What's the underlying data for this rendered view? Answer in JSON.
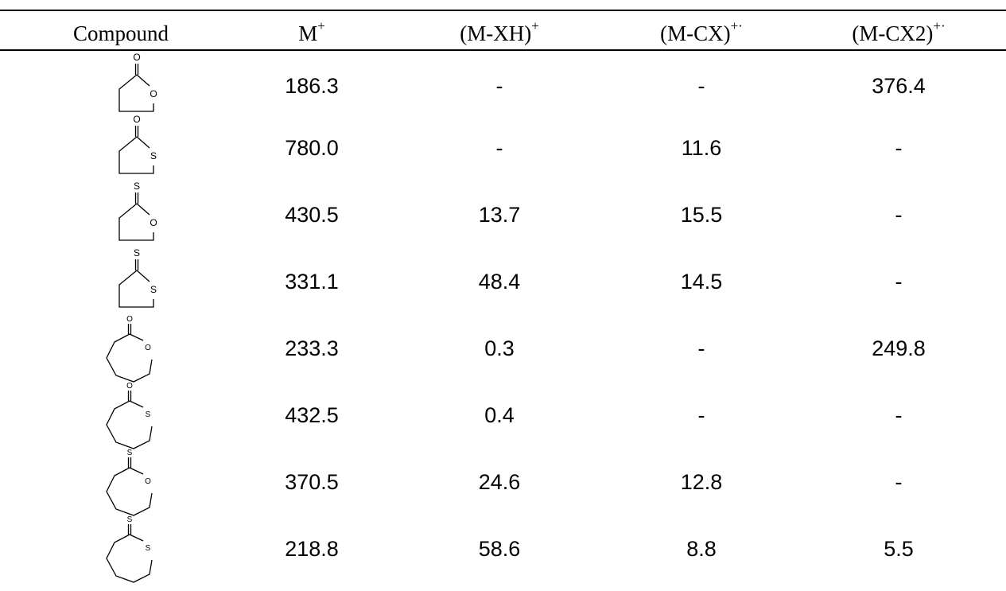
{
  "headers": {
    "compound": "Compound",
    "m_base": "M",
    "m_sup": "+",
    "mxh_base": "(M-XH)",
    "mxh_sup": "+",
    "mcx_base": "(M-CX)",
    "mcx_sup": "+·",
    "mcx2_base": "(M-CX2)",
    "mcx2_sup": "+·"
  },
  "rows": [
    {
      "ring": 5,
      "exo": "O",
      "ring_atom": "O",
      "m": "186.3",
      "mxh": "-",
      "mcx": "-",
      "mcx2": "376.4"
    },
    {
      "ring": 5,
      "exo": "O",
      "ring_atom": "S",
      "m": "780.0",
      "mxh": "-",
      "mcx": "11.6",
      "mcx2": "-"
    },
    {
      "ring": 5,
      "exo": "S",
      "ring_atom": "O",
      "m": "430.5",
      "mxh": "13.7",
      "mcx": "15.5",
      "mcx2": "-"
    },
    {
      "ring": 5,
      "exo": "S",
      "ring_atom": "S",
      "m": "331.1",
      "mxh": "48.4",
      "mcx": "14.5",
      "mcx2": "-"
    },
    {
      "ring": 7,
      "exo": "O",
      "ring_atom": "O",
      "m": "233.3",
      "mxh": "0.3",
      "mcx": "-",
      "mcx2": "249.8"
    },
    {
      "ring": 7,
      "exo": "O",
      "ring_atom": "S",
      "m": "432.5",
      "mxh": "0.4",
      "mcx": "-",
      "mcx2": "-"
    },
    {
      "ring": 7,
      "exo": "S",
      "ring_atom": "O",
      "m": "370.5",
      "mxh": "24.6",
      "mcx": "12.8",
      "mcx2": "-"
    },
    {
      "ring": 7,
      "exo": "S",
      "ring_atom": "S",
      "m": "218.8",
      "mxh": "58.6",
      "mcx": "8.8",
      "mcx2": "5.5"
    }
  ]
}
